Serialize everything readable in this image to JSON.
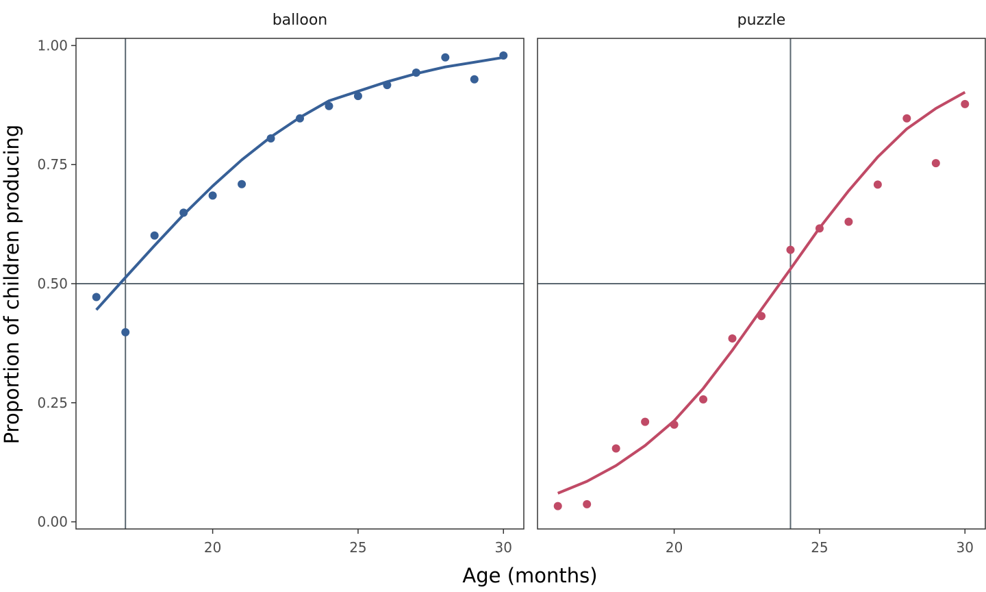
{
  "chart_data": {
    "type": "scatter",
    "xlabel": "Age (months)",
    "ylabel": "Proportion of children producing",
    "xlim": [
      15.3,
      30.7
    ],
    "ylim": [
      -0.015,
      1.015
    ],
    "x_ticks": [
      20,
      25,
      30
    ],
    "y_ticks": [
      0.0,
      0.25,
      0.5,
      0.75,
      1.0
    ],
    "y_tick_labels": [
      "0.00",
      "0.25",
      "0.50",
      "0.75",
      "1.00"
    ],
    "hline": 0.5,
    "grid": false,
    "legend": "none",
    "panels": [
      {
        "name": "balloon",
        "color": "#376097",
        "vline": 17,
        "points": {
          "x": [
            16,
            17,
            18,
            19,
            20,
            21,
            22,
            23,
            24,
            25,
            26,
            27,
            28,
            29,
            30
          ],
          "y": [
            0.472,
            0.398,
            0.601,
            0.649,
            0.685,
            0.709,
            0.805,
            0.847,
            0.873,
            0.894,
            0.917,
            0.943,
            0.975,
            0.929,
            0.979
          ]
        },
        "curve": {
          "x": [
            16,
            17,
            18,
            19,
            20,
            21,
            22,
            23,
            24,
            25,
            26,
            27,
            28,
            29,
            30
          ],
          "y": [
            0.445,
            0.513,
            0.58,
            0.645,
            0.705,
            0.76,
            0.808,
            0.849,
            0.884,
            0.904,
            0.924,
            0.941,
            0.955,
            0.965,
            0.975
          ]
        }
      },
      {
        "name": "puzzle",
        "color": "#c04a66",
        "vline": 24,
        "points": {
          "x": [
            16,
            17,
            18,
            19,
            20,
            21,
            22,
            23,
            24,
            25,
            26,
            27,
            28,
            29,
            30
          ],
          "y": [
            0.033,
            0.037,
            0.154,
            0.21,
            0.204,
            0.257,
            0.385,
            0.432,
            0.571,
            0.616,
            0.63,
            0.708,
            0.847,
            0.753,
            0.877
          ]
        },
        "curve": {
          "x": [
            16,
            17,
            18,
            19,
            20,
            21,
            22,
            23,
            24,
            25,
            26,
            27,
            28,
            29,
            30
          ],
          "y": [
            0.06,
            0.085,
            0.118,
            0.16,
            0.212,
            0.28,
            0.36,
            0.446,
            0.531,
            0.617,
            0.695,
            0.766,
            0.825,
            0.868,
            0.902
          ]
        }
      }
    ]
  }
}
